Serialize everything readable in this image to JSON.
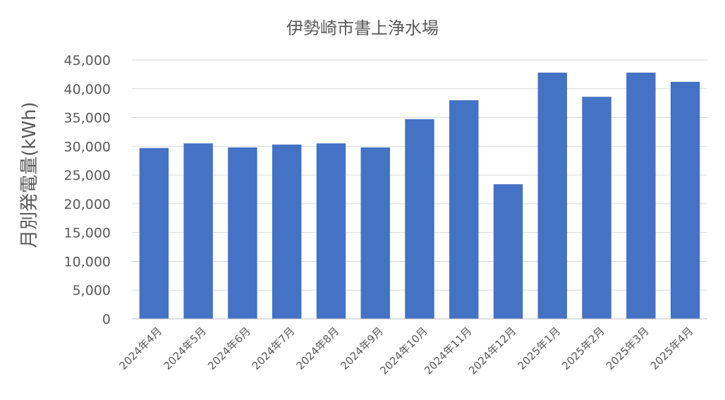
{
  "chart_data": {
    "type": "bar",
    "title": "伊勢崎市書上浄水場",
    "xlabel": "",
    "ylabel": "月別発電量(kWh)",
    "categories": [
      "2024年4月",
      "2024年5月",
      "2024年6月",
      "2024年7月",
      "2024年8月",
      "2024年9月",
      "2024年10月",
      "2024年11月",
      "2024年12月",
      "2025年1月",
      "2025年2月",
      "2025年3月",
      "2025年4月"
    ],
    "values": [
      29700,
      30500,
      29800,
      30300,
      30500,
      29800,
      34700,
      38000,
      23400,
      42800,
      38600,
      42800,
      41200
    ],
    "ylim": [
      0,
      45000
    ],
    "yticks": [
      "0",
      "5,000",
      "10,000",
      "15,000",
      "20,000",
      "25,000",
      "30,000",
      "35,000",
      "40,000",
      "45,000"
    ],
    "grid": true,
    "legend": "none",
    "colors": {
      "bar": "#4472C4"
    }
  }
}
